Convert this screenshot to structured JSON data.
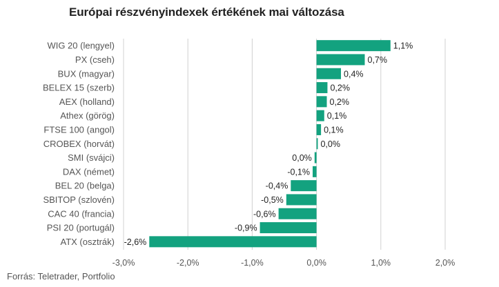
{
  "title": "Európai részvényindexek értékének mai változása",
  "source": "Forrás: Teletrader, Portfolio",
  "colors": {
    "bar": "#13a27f",
    "grid": "#d0d0d0",
    "text": "#555555",
    "label": "#222222"
  },
  "chart_data": {
    "type": "bar",
    "orientation": "horizontal",
    "title": "Európai részvényindexek értékének mai változása",
    "categories": [
      "WIG 20 (lengyel)",
      "PX (cseh)",
      "BUX (magyar)",
      "BELEX 15 (szerb)",
      "AEX (holland)",
      "Athex (görög)",
      "FTSE 100 (angol)",
      "CROBEX (horvát)",
      "SMI (svájci)",
      "DAX (német)",
      "BEL 20 (belga)",
      "SBITOP (szlovén)",
      "CAC 40 (francia)",
      "PSI 20 (portugál)",
      "ATX (osztrák)"
    ],
    "values": [
      1.15,
      0.75,
      0.38,
      0.17,
      0.16,
      0.12,
      0.07,
      0.02,
      -0.03,
      -0.06,
      -0.4,
      -0.47,
      -0.59,
      -0.88,
      -2.6
    ],
    "value_labels": [
      "1,1%",
      "0,7%",
      "0,4%",
      "0,2%",
      "0,2%",
      "0,1%",
      "0,1%",
      "0,0%",
      "0,0%",
      "-0,1%",
      "-0,4%",
      "-0,5%",
      "-0,6%",
      "-0,9%",
      "-2,6%"
    ],
    "xlim": [
      -3.0,
      2.0
    ],
    "ticks": [
      -3.0,
      -2.0,
      -1.0,
      0.0,
      1.0,
      2.0
    ],
    "tick_labels": [
      "-3,0%",
      "-2,0%",
      "-1,0%",
      "0,0%",
      "1,0%",
      "2,0%"
    ],
    "grid": true,
    "legend": "none"
  }
}
